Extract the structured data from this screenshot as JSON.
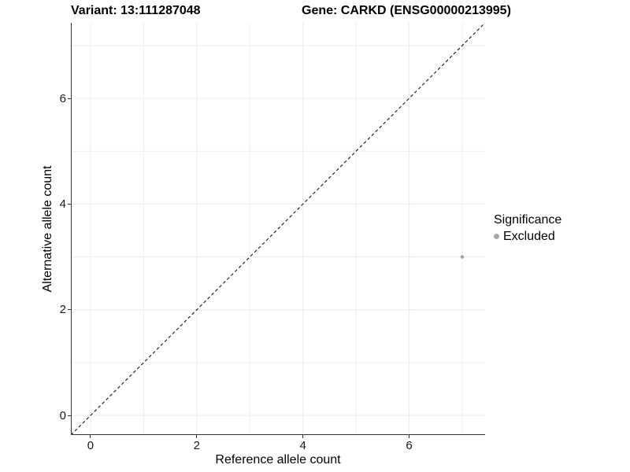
{
  "titles": {
    "left": "Variant: 13:111287048",
    "right": "Gene: CARKD (ENSG00000213995)"
  },
  "chart_data": {
    "type": "scatter",
    "title_left": "Variant: 13:111287048",
    "title_right": "Gene: CARKD (ENSG00000213995)",
    "xlabel": "Reference allele count",
    "ylabel": "Alternative allele count",
    "xlim": [
      -0.37,
      7.43
    ],
    "ylim": [
      -0.37,
      7.43
    ],
    "x_ticks": [
      0,
      2,
      4,
      6
    ],
    "y_ticks": [
      0,
      2,
      4,
      6
    ],
    "gridlines": [
      0,
      1,
      2,
      3,
      4,
      5,
      6,
      7
    ],
    "grid": true,
    "grid_color": "#ececec",
    "axis_color": "#333333",
    "points": [
      {
        "x": 7,
        "y": 3,
        "significance": "Excluded"
      }
    ],
    "point_color": "#a3a3a3",
    "identity_line": {
      "from": "corner-to-corner",
      "slope": 1,
      "style": "dashed",
      "color": "#000000"
    },
    "legend": {
      "title": "Significance",
      "position": "right",
      "items": [
        {
          "label": "Excluded",
          "color": "#a8a8a8"
        }
      ]
    }
  }
}
